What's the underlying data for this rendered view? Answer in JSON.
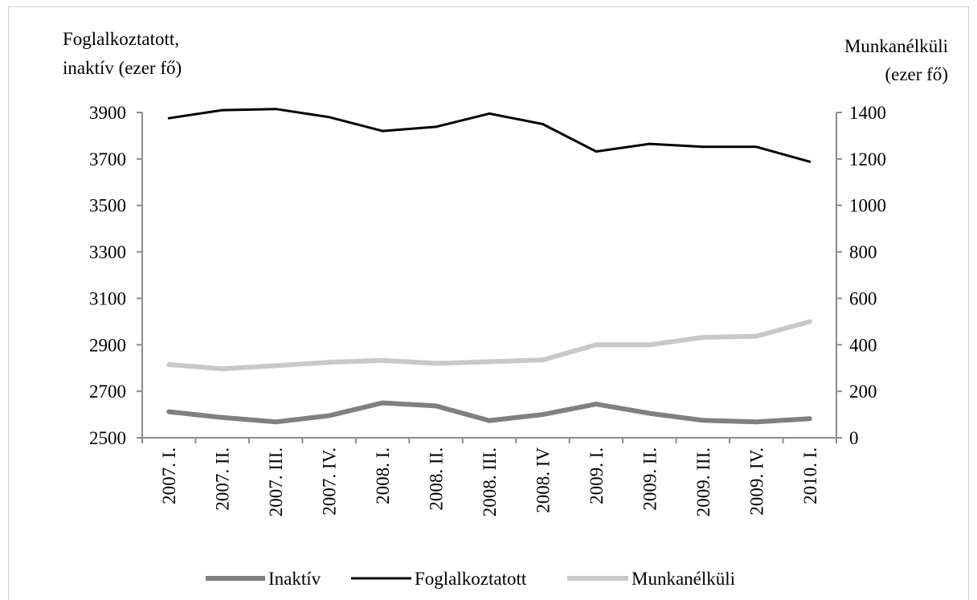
{
  "chart_data": {
    "type": "line",
    "title": "",
    "ylabel_left": [
      "Foglalkoztatott,",
      "inaktív (ezer fő)"
    ],
    "ylabel_right": [
      "Munkanélküli",
      "(ezer fő)"
    ],
    "categories": [
      "2007. I.",
      "2007. II.",
      "2007. III.",
      "2007. IV.",
      "2008. I.",
      "2008. II.",
      "2008. III.",
      "2008. IV",
      "2009. I.",
      "2009. II.",
      "2009. III.",
      "2009. IV.",
      "2010. I."
    ],
    "ylim_left": [
      2500,
      3900
    ],
    "yticks_left": [
      "3900",
      "3700",
      "3500",
      "3300",
      "3100",
      "2900",
      "2700",
      "2500"
    ],
    "ylim_right": [
      0,
      1400
    ],
    "yticks_right": [
      "1400",
      "1200",
      "1000",
      "800",
      "600",
      "400",
      "200",
      "0"
    ],
    "grid": false,
    "legend_position": "bottom",
    "series": [
      {
        "name": "Inaktív",
        "axis": "left",
        "color": "#808080",
        "values": [
          2612,
          2587,
          2568,
          2595,
          2650,
          2637,
          2574,
          2600,
          2645,
          2605,
          2575,
          2568,
          2582
        ]
      },
      {
        "name": "Foglalkoztatott",
        "axis": "left",
        "color": "#000000",
        "values": [
          3875,
          3910,
          3915,
          3880,
          3820,
          3838,
          3895,
          3850,
          3732,
          3765,
          3752,
          3752,
          3688
        ]
      },
      {
        "name": "Munkanélküli",
        "axis": "right",
        "color": "#c8c8c8",
        "values": [
          315,
          297,
          310,
          325,
          333,
          320,
          327,
          335,
          400,
          400,
          432,
          437,
          500
        ]
      }
    ]
  }
}
